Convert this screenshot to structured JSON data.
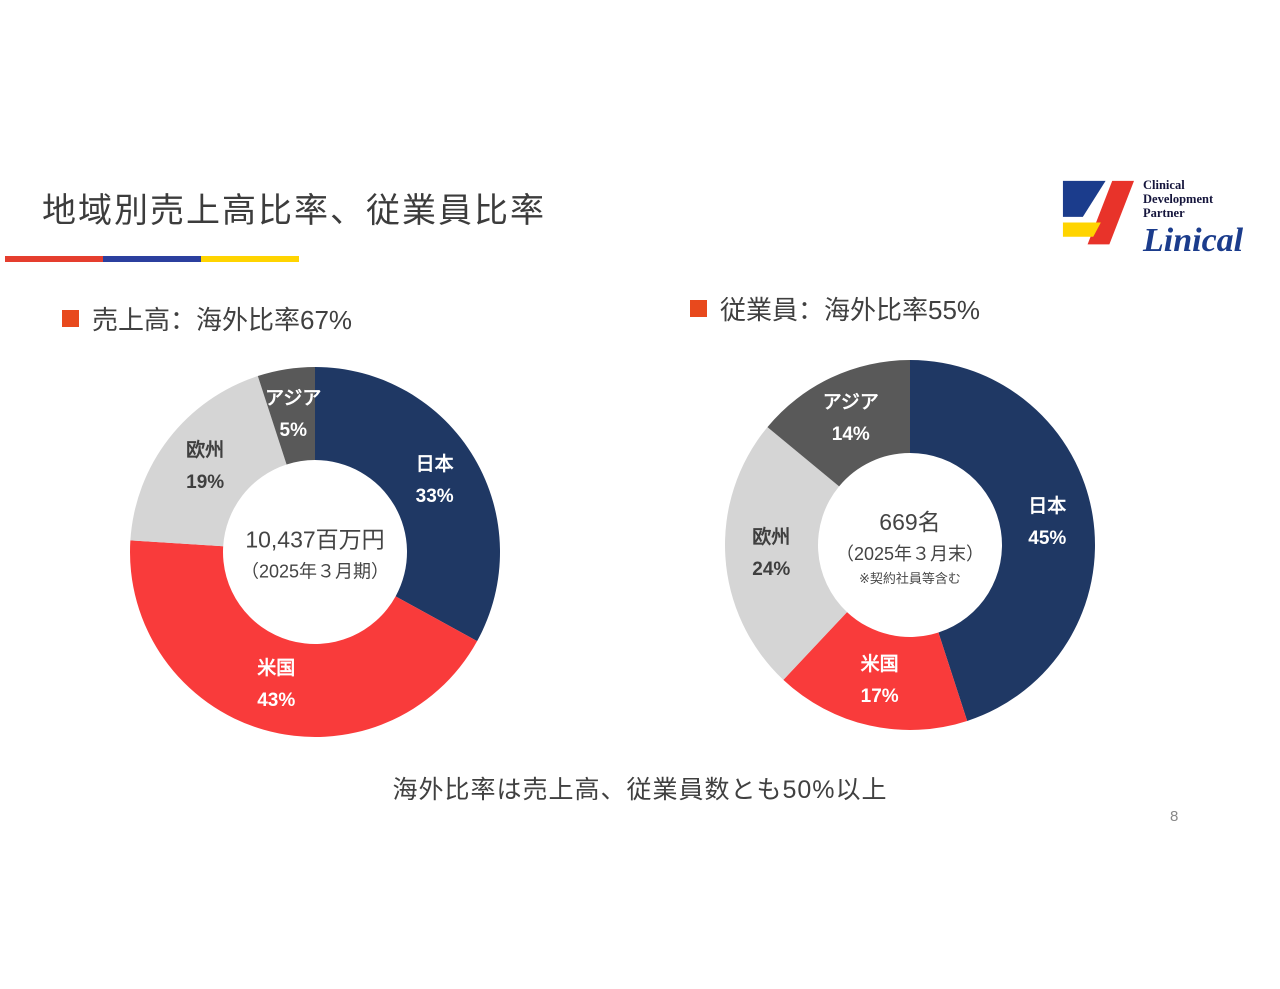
{
  "slide": {
    "title": "地域別売上高比率、従業員比率",
    "footer_note": "海外比率は売上高、従業員数とも50%以上",
    "page_number": "8"
  },
  "logo": {
    "tagline": [
      "Clinical",
      "Development",
      "Partner"
    ],
    "brand": "Linical",
    "colors": {
      "blue": "#1b3c8c",
      "red": "#e8332a",
      "yellow": "#ffd400"
    }
  },
  "accent_bar_colors": [
    "#e53e2e",
    "#2b3f9e",
    "#ffd400"
  ],
  "bullet_color": "#e8491d",
  "chart_data": [
    {
      "type": "pie",
      "donut": true,
      "title": "売上高：海外比率67%",
      "legend_position": "none",
      "start_angle": "top",
      "direction": "clockwise",
      "center": {
        "main": "10,437百万円",
        "sub": "（2025年３月期）"
      },
      "segments": [
        {
          "label": "日本",
          "value": 33,
          "color": "#1f3864",
          "label_color": "#ffffff"
        },
        {
          "label": "米国",
          "value": 43,
          "color": "#f93b3b",
          "label_color": "#ffffff"
        },
        {
          "label": "欧州",
          "value": 19,
          "color": "#d5d5d5",
          "label_color": "#3f3f3f"
        },
        {
          "label": "アジア",
          "value": 5,
          "color": "#595959",
          "label_color": "#ffffff"
        }
      ]
    },
    {
      "type": "pie",
      "donut": true,
      "title": "従業員：海外比率55%",
      "legend_position": "none",
      "start_angle": "top",
      "direction": "clockwise",
      "center": {
        "main": "669名",
        "sub": "（2025年３月末）",
        "note": "※契約社員等含む"
      },
      "segments": [
        {
          "label": "日本",
          "value": 45,
          "color": "#1f3864",
          "label_color": "#ffffff"
        },
        {
          "label": "米国",
          "value": 17,
          "color": "#f93b3b",
          "label_color": "#ffffff"
        },
        {
          "label": "欧州",
          "value": 24,
          "color": "#d5d5d5",
          "label_color": "#3f3f3f"
        },
        {
          "label": "アジア",
          "value": 14,
          "color": "#595959",
          "label_color": "#ffffff"
        }
      ]
    }
  ]
}
